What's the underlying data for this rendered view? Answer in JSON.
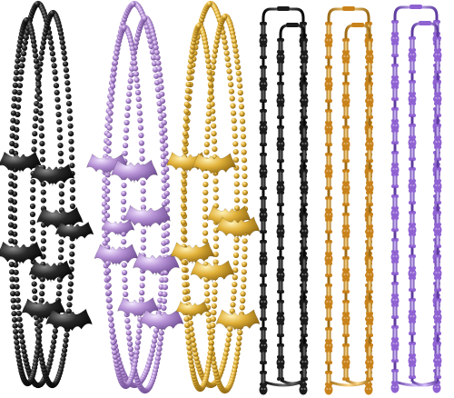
{
  "colors": {
    "background": "#ffffff",
    "black": "#1a1a1a",
    "purple": "#b08fd0",
    "gold": "#d9a92a",
    "orange": "#d99a2e",
    "violet": "#9a6fd6"
  },
  "necklaces": [
    {
      "kind": "bat-beads",
      "color": "black",
      "strands": 3
    },
    {
      "kind": "bat-beads",
      "color": "purple",
      "strands": 3
    },
    {
      "kind": "bat-beads",
      "color": "gold",
      "strands": 3
    },
    {
      "kind": "skull-bone",
      "color": "black",
      "strands": 2
    },
    {
      "kind": "skull-bone",
      "color": "orange",
      "strands": 2
    },
    {
      "kind": "skull-bone",
      "color": "violet",
      "strands": 2
    }
  ]
}
